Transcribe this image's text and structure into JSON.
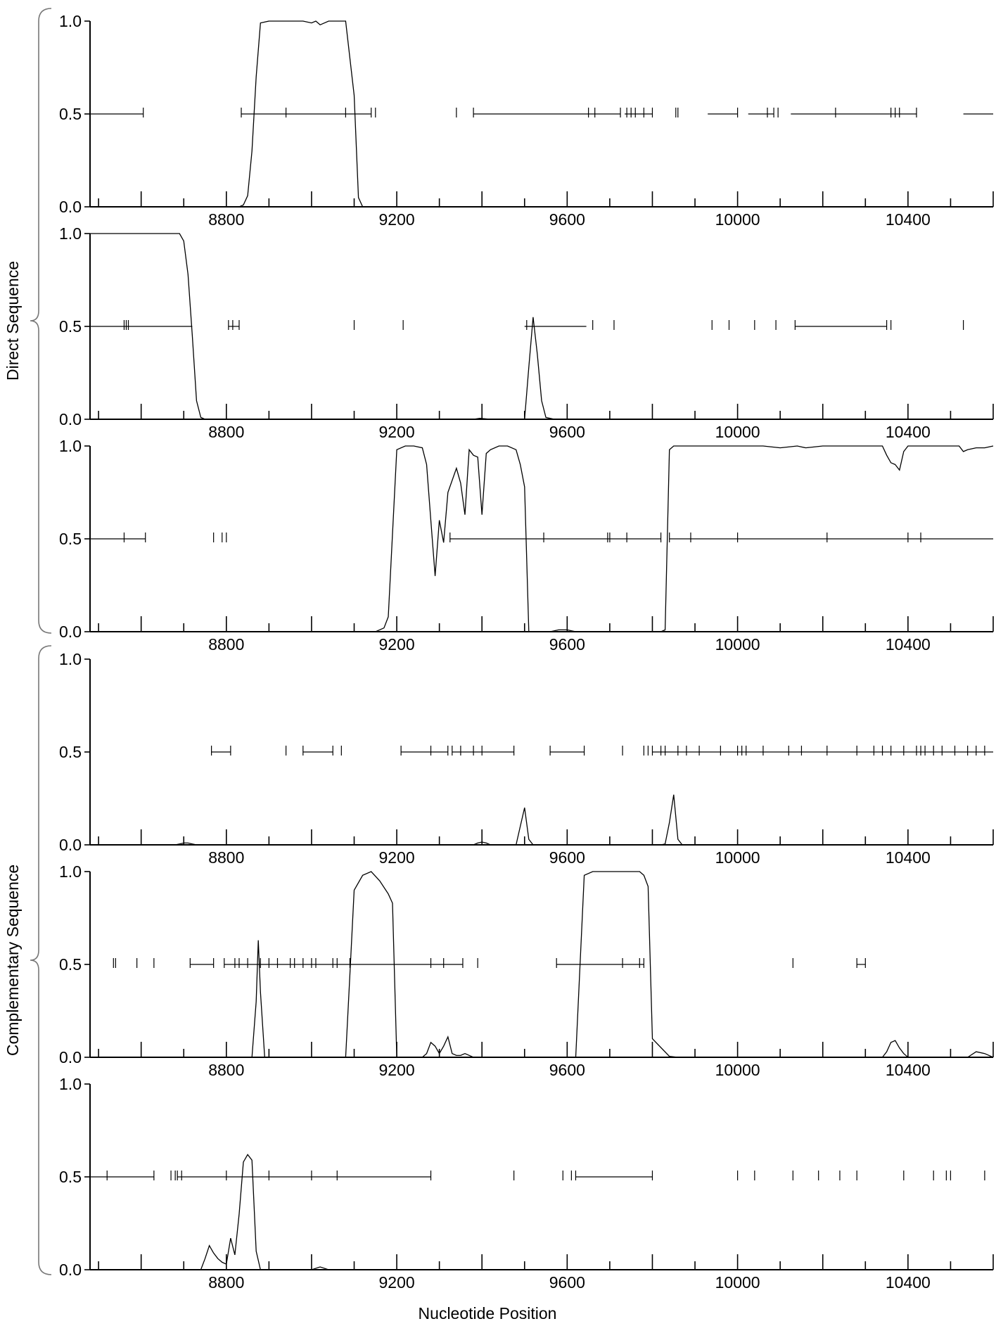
{
  "xlabel": "Nucleotide Position",
  "group_labels": [
    "Direct Sequence",
    "Complementary Sequence"
  ],
  "chart_data": {
    "type": "line",
    "xlabel": "Nucleotide Position",
    "xlim": [
      8480,
      10600
    ],
    "ylim": [
      0,
      1
    ],
    "x_ticks": [
      "8800",
      "9200",
      "9600",
      "10000",
      "10400"
    ],
    "y_ticks": [
      "1.0",
      "0.5",
      "0.0"
    ],
    "grid": false,
    "legend": "none",
    "groups": [
      {
        "label": "Direct Sequence",
        "panels": [
          0,
          1,
          2
        ]
      },
      {
        "label": "Complementary Sequence",
        "panels": [
          3,
          4,
          5
        ]
      }
    ],
    "panels": [
      {
        "series": {
          "x": [
            8830,
            8840,
            8850,
            8860,
            8870,
            8880,
            8900,
            8920,
            8950,
            8980,
            9000,
            9010,
            9020,
            9040,
            9060,
            9080,
            9100,
            9110,
            9120
          ],
          "y": [
            0.0,
            0.01,
            0.06,
            0.3,
            0.7,
            0.99,
            1.0,
            1.0,
            1.0,
            1.0,
            0.99,
            1.0,
            0.98,
            1.0,
            1.0,
            1.0,
            0.6,
            0.05,
            0.0
          ]
        },
        "segments": [
          [
            8480,
            8605
          ],
          [
            8835,
            9140
          ],
          [
            9380,
            9725
          ],
          [
            9735,
            9800
          ],
          [
            9930,
            10000
          ],
          [
            10025,
            10085
          ],
          [
            10125,
            10420
          ],
          [
            10530,
            10600
          ]
        ],
        "marks": [
          8605,
          8835,
          8940,
          9080,
          9140,
          9150,
          9340,
          9380,
          9650,
          9665,
          9725,
          9740,
          9750,
          9760,
          9780,
          9800,
          9855,
          9860,
          10000,
          10070,
          10085,
          10095,
          10230,
          10360,
          10370,
          10380,
          10420
        ]
      },
      {
        "series": {
          "x": [
            8480,
            8600,
            8690,
            8700,
            8710,
            8720,
            8730,
            8740,
            8750,
            8760,
            8800,
            9380,
            9395,
            9420,
            9500,
            9510,
            9520,
            9530,
            9540,
            9550,
            9570,
            9600,
            10600
          ],
          "y": [
            1.0,
            1.0,
            1.0,
            0.96,
            0.78,
            0.45,
            0.1,
            0.01,
            0.0,
            0.0,
            0.0,
            0.0,
            0.005,
            0.0,
            0.0,
            0.28,
            0.55,
            0.35,
            0.1,
            0.01,
            0.0,
            0.0,
            0.0
          ]
        },
        "segments": [
          [
            8480,
            8720
          ],
          [
            8805,
            8830
          ],
          [
            9500,
            9645
          ],
          [
            10135,
            10350
          ]
        ],
        "marks": [
          8560,
          8565,
          8570,
          8805,
          8815,
          8830,
          9100,
          9215,
          9505,
          9660,
          9710,
          9940,
          9980,
          10040,
          10090,
          10135,
          10350,
          10360,
          10530
        ]
      },
      {
        "series": {
          "x": [
            9130,
            9150,
            9170,
            9180,
            9200,
            9220,
            9240,
            9260,
            9270,
            9280,
            9290,
            9300,
            9310,
            9320,
            9340,
            9350,
            9360,
            9370,
            9380,
            9390,
            9400,
            9410,
            9420,
            9440,
            9460,
            9480,
            9490,
            9500,
            9510,
            9520,
            9530,
            9560,
            9580,
            9600,
            9620,
            9640,
            9820,
            9830,
            9840,
            9850,
            9860,
            9900,
            9960,
            10000,
            10060,
            10100,
            10140,
            10160,
            10200,
            10260,
            10300,
            10340,
            10350,
            10360,
            10370,
            10380,
            10390,
            10400,
            10420,
            10460,
            10520,
            10530,
            10540,
            10560,
            10580,
            10600
          ],
          "y": [
            0.0,
            0.0,
            0.02,
            0.08,
            0.98,
            1.0,
            1.0,
            0.99,
            0.9,
            0.6,
            0.3,
            0.6,
            0.48,
            0.75,
            0.88,
            0.8,
            0.63,
            0.98,
            0.95,
            0.94,
            0.63,
            0.96,
            0.98,
            1.0,
            1.0,
            0.98,
            0.9,
            0.78,
            0.0,
            0.0,
            0.0,
            0.0,
            0.01,
            0.01,
            0.0,
            0.0,
            0.0,
            0.01,
            0.98,
            1.0,
            1.0,
            1.0,
            1.0,
            1.0,
            1.0,
            0.99,
            1.0,
            0.99,
            1.0,
            1.0,
            1.0,
            1.0,
            0.95,
            0.91,
            0.9,
            0.87,
            0.97,
            1.0,
            1.0,
            1.0,
            1.0,
            0.97,
            0.98,
            0.99,
            0.99,
            1.0
          ]
        },
        "segments": [
          [
            8480,
            8610
          ],
          [
            9325,
            9820
          ],
          [
            9840,
            10600
          ]
        ],
        "marks": [
          8560,
          8610,
          8770,
          8790,
          8800,
          9325,
          9545,
          9695,
          9700,
          9740,
          9820,
          9840,
          9890,
          10000,
          10210,
          10400,
          10430
        ]
      },
      {
        "series": {
          "x": [
            8480,
            8680,
            8690,
            8700,
            8710,
            8720,
            8730,
            9380,
            9390,
            9400,
            9410,
            9420,
            9480,
            9490,
            9500,
            9510,
            9520,
            9530,
            9820,
            9830,
            9840,
            9850,
            9860,
            9870,
            10600
          ],
          "y": [
            0.0,
            0.0,
            0.005,
            0.01,
            0.01,
            0.005,
            0.0,
            0.0,
            0.01,
            0.015,
            0.01,
            0.0,
            0.0,
            0.1,
            0.2,
            0.03,
            0.0,
            0.0,
            0.0,
            0.005,
            0.12,
            0.27,
            0.03,
            0.0,
            0.0
          ]
        },
        "segments": [
          [
            8765,
            8810
          ],
          [
            8980,
            9050
          ],
          [
            9210,
            9320
          ],
          [
            9330,
            9475
          ],
          [
            9560,
            9640
          ],
          [
            9800,
            10600
          ]
        ],
        "marks": [
          8765,
          8810,
          8940,
          8980,
          9050,
          9070,
          9210,
          9280,
          9320,
          9330,
          9350,
          9380,
          9400,
          9475,
          9560,
          9640,
          9730,
          9780,
          9790,
          9800,
          9820,
          9830,
          9860,
          9880,
          9910,
          9960,
          10000,
          10010,
          10020,
          10060,
          10120,
          10150,
          10210,
          10280,
          10320,
          10340,
          10360,
          10390,
          10420,
          10430,
          10440,
          10460,
          10480,
          10510,
          10540,
          10560,
          10580
        ]
      },
      {
        "series": {
          "x": [
            8480,
            8860,
            8870,
            8875,
            8880,
            8890,
            9060,
            9080,
            9090,
            9100,
            9120,
            9140,
            9160,
            9180,
            9190,
            9200,
            9240,
            9260,
            9270,
            9280,
            9290,
            9300,
            9310,
            9320,
            9330,
            9340,
            9350,
            9360,
            9380,
            9600,
            9610,
            9620,
            9640,
            9660,
            9700,
            9740,
            9770,
            9780,
            9790,
            9800,
            9840,
            9860,
            10200,
            10340,
            10350,
            10360,
            10370,
            10380,
            10390,
            10400,
            10540,
            10560,
            10580,
            10600
          ],
          "y": [
            0.0,
            0.0,
            0.3,
            0.63,
            0.35,
            0.0,
            0.0,
            0.0,
            0.45,
            0.9,
            0.98,
            1.0,
            0.95,
            0.88,
            0.83,
            0.0,
            0.0,
            0.0,
            0.02,
            0.08,
            0.06,
            0.02,
            0.06,
            0.11,
            0.02,
            0.01,
            0.01,
            0.02,
            0.0,
            0.0,
            0.0,
            0.0,
            0.98,
            1.0,
            1.0,
            1.0,
            1.0,
            0.98,
            0.92,
            0.1,
            0.005,
            0.0,
            0.0,
            0.0,
            0.03,
            0.08,
            0.09,
            0.05,
            0.02,
            0.0,
            0.0,
            0.03,
            0.02,
            0.0
          ]
        },
        "segments": [
          [
            8715,
            8770
          ],
          [
            8795,
            9355
          ],
          [
            9575,
            9780
          ],
          [
            10280,
            10300
          ]
        ],
        "marks": [
          8535,
          8540,
          8590,
          8630,
          8715,
          8770,
          8795,
          8820,
          8830,
          8850,
          8880,
          8900,
          8920,
          8950,
          8960,
          8980,
          9000,
          9010,
          9050,
          9060,
          9090,
          9280,
          9310,
          9355,
          9390,
          9575,
          9730,
          9770,
          9780,
          10130,
          10280,
          10300
        ]
      },
      {
        "series": {
          "x": [
            8480,
            8740,
            8750,
            8760,
            8770,
            8780,
            8790,
            8800,
            8810,
            8820,
            8830,
            8840,
            8850,
            8860,
            8870,
            8880,
            8890,
            8980,
            9000,
            9020,
            9040,
            9060,
            10600
          ],
          "y": [
            0.0,
            0.0,
            0.06,
            0.13,
            0.09,
            0.06,
            0.04,
            0.03,
            0.17,
            0.08,
            0.3,
            0.58,
            0.62,
            0.59,
            0.1,
            0.0,
            0.0,
            0.0,
            0.0,
            0.015,
            0.0,
            0.0,
            0.0
          ]
        },
        "segments": [
          [
            8480,
            8630
          ],
          [
            8685,
            9280
          ],
          [
            9620,
            9800
          ]
        ],
        "marks": [
          8520,
          8630,
          8670,
          8680,
          8685,
          8695,
          8800,
          8900,
          9000,
          9060,
          9280,
          9475,
          9590,
          9610,
          9620,
          9800,
          10000,
          10040,
          10130,
          10190,
          10240,
          10280,
          10390,
          10460,
          10490,
          10500,
          10580
        ]
      }
    ]
  }
}
